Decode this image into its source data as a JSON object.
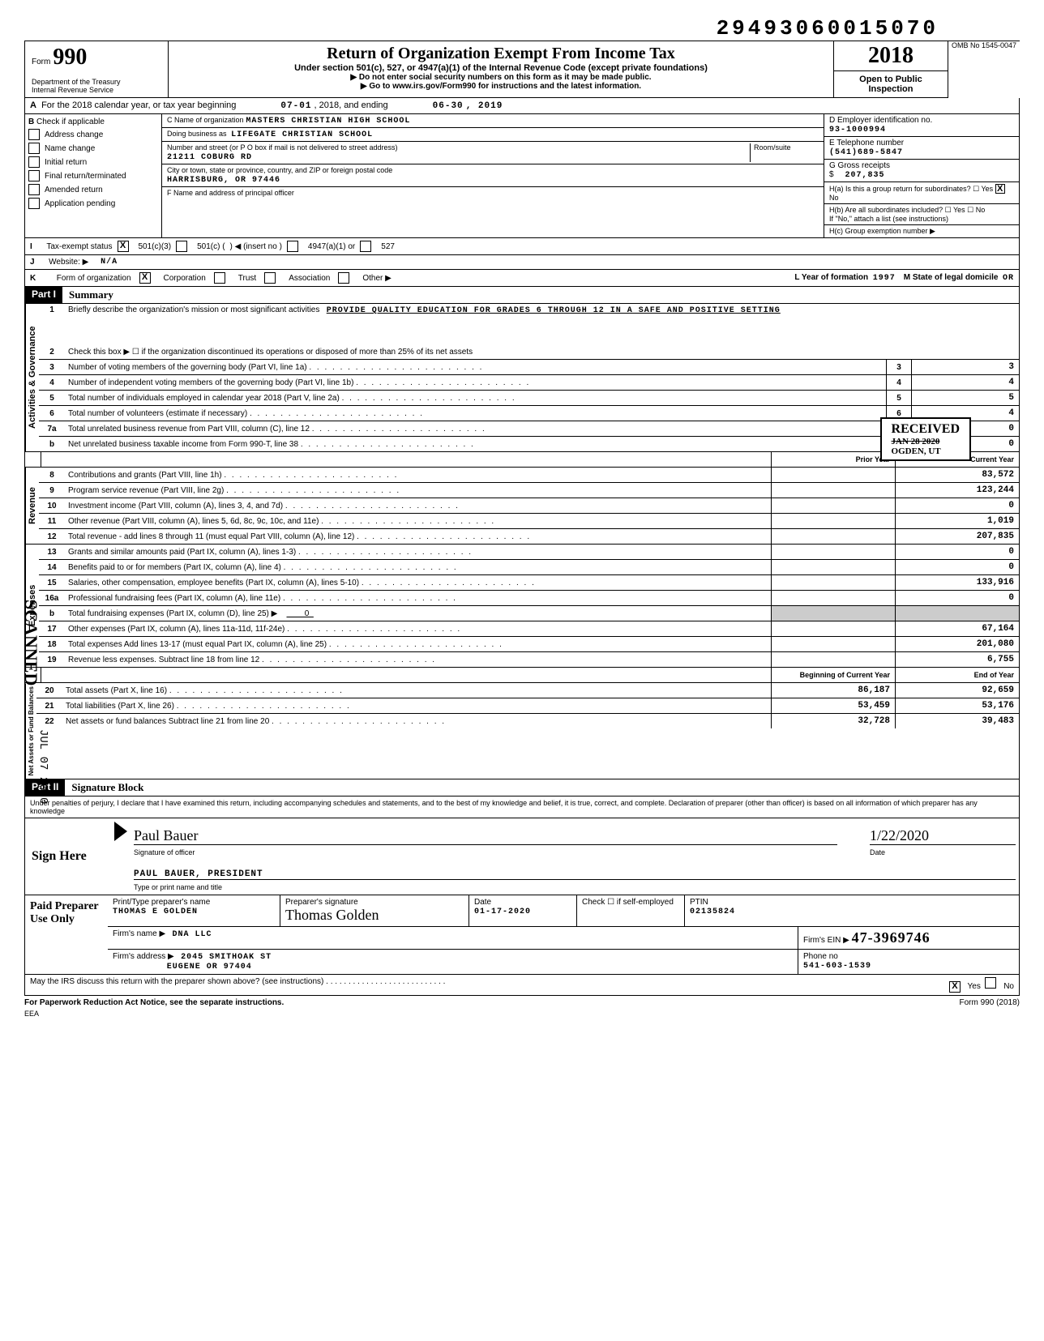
{
  "top_code": "29493060015070",
  "omb": "OMB No 1545-0047",
  "form_number": "990",
  "title": "Return of Organization Exempt From Income Tax",
  "subtitle1": "Under section 501(c), 527, or 4947(a)(1) of the Internal Revenue Code (except private foundations)",
  "subtitle2": "▶ Do not enter social security numbers on this form as it may be made public.",
  "subtitle3": "▶ Go to www.irs.gov/Form990 for instructions and the latest information.",
  "dept1": "Department of the Treasury",
  "dept2": "Internal Revenue Service",
  "year": "2018",
  "open_public": "Open to Public Inspection",
  "row_a": {
    "text": "For the 2018 calendar year, or tax year beginning",
    "begin": "07-01",
    "mid": ", 2018, and ending",
    "end_m": "06-30",
    "end_y": ", 2019"
  },
  "section_b": {
    "header": "Check if applicable",
    "items": [
      "Address change",
      "Name change",
      "Initial return",
      "Final return/terminated",
      "Amended return",
      "Application pending"
    ]
  },
  "section_c": {
    "name_label": "C Name of organization",
    "name": "MASTERS CHRISTIAN HIGH SCHOOL",
    "dba_label": "Doing business as",
    "dba": "LIFEGATE CHRISTIAN SCHOOL",
    "street_label": "Number and street (or P O box if mail is not delivered to street address)",
    "street": "21211 COBURG RD",
    "room_label": "Room/suite",
    "city_label": "City or town, state or province, country, and ZIP or foreign postal code",
    "city": "HARRISBURG, OR 97446",
    "f_label": "F Name and address of principal officer"
  },
  "section_d": {
    "ein_label": "D Employer identification no.",
    "ein": "93-1000994",
    "phone_label": "E Telephone number",
    "phone": "(541)689-5847",
    "gross_label": "G Gross receipts",
    "gross": "207,835",
    "ha_label": "H(a) Is this a group return for subordinates?",
    "hb_label": "H(b) Are all subordinates included?",
    "h_note": "If \"No,\" attach a list (see instructions)",
    "hc_label": "H(c) Group exemption number ▶"
  },
  "row_i": {
    "label": "Tax-exempt status",
    "opts": [
      "501(c)(3)",
      "501(c) (",
      "4947(a)(1) or",
      "527"
    ],
    "insert": ") ◀ (insert no )"
  },
  "row_j": {
    "label": "Website: ▶",
    "value": "N/A"
  },
  "row_k": {
    "label": "Form of organization",
    "opts": [
      "Corporation",
      "Trust",
      "Association",
      "Other ▶"
    ],
    "l_label": "L Year of formation",
    "l_val": "1997",
    "m_label": "M State of legal domicile",
    "m_val": "OR"
  },
  "part1": {
    "header": "Part I",
    "title": "Summary",
    "gov_label": "Activities & Governance",
    "rev_label": "Revenue",
    "exp_label": "Expenses",
    "net_label": "Net Assets or Fund Balances",
    "line1_label": "Briefly describe the organization's mission or most significant activities",
    "line1_val": "PROVIDE QUALITY EDUCATION FOR GRADES 6 THROUGH 12 IN A SAFE AND POSITIVE SETTING",
    "line2": "Check this box ▶ ☐ if the organization discontinued its operations or disposed of more than 25% of its net assets",
    "lines_gov": [
      {
        "n": "3",
        "t": "Number of voting members of the governing body (Part VI, line 1a)",
        "box": "3",
        "v": "3"
      },
      {
        "n": "4",
        "t": "Number of independent voting members of the governing body (Part VI, line 1b)",
        "box": "4",
        "v": "4"
      },
      {
        "n": "5",
        "t": "Total number of individuals employed in calendar year 2018 (Part V, line 2a)",
        "box": "5",
        "v": "5"
      },
      {
        "n": "6",
        "t": "Total number of volunteers (estimate if necessary)",
        "box": "6",
        "v": "4"
      },
      {
        "n": "7a",
        "t": "Total unrelated business revenue from Part VIII, column (C), line 12",
        "box": "7a",
        "v": "0"
      },
      {
        "n": "b",
        "t": "Net unrelated business taxable income from Form 990-T, line 38",
        "box": "7b",
        "v": "0"
      }
    ],
    "col_headers": {
      "prior": "Prior Year",
      "current": "Current Year",
      "begin": "Beginning of Current Year",
      "end": "End of Year"
    },
    "lines_rev": [
      {
        "n": "8",
        "t": "Contributions and grants (Part VIII, line 1h)",
        "p": "",
        "c": "83,572"
      },
      {
        "n": "9",
        "t": "Program service revenue (Part VIII, line 2g)",
        "p": "",
        "c": "123,244"
      },
      {
        "n": "10",
        "t": "Investment income (Part VIII, column (A), lines 3, 4, and 7d)",
        "p": "",
        "c": "0"
      },
      {
        "n": "11",
        "t": "Other revenue (Part VIII, column (A), lines 5, 6d, 8c, 9c, 10c, and 11e)",
        "p": "",
        "c": "1,019"
      },
      {
        "n": "12",
        "t": "Total revenue - add lines 8 through 11 (must equal Part VIII, column (A), line 12)",
        "p": "",
        "c": "207,835"
      }
    ],
    "lines_exp": [
      {
        "n": "13",
        "t": "Grants and similar amounts paid (Part IX, column (A), lines 1-3)",
        "p": "",
        "c": "0"
      },
      {
        "n": "14",
        "t": "Benefits paid to or for members (Part IX, column (A), line 4)",
        "p": "",
        "c": "0"
      },
      {
        "n": "15",
        "t": "Salaries, other compensation, employee benefits (Part IX, column (A), lines 5-10)",
        "p": "",
        "c": "133,916"
      },
      {
        "n": "16a",
        "t": "Professional fundraising fees (Part IX, column (A), line 11e)",
        "p": "",
        "c": "0"
      },
      {
        "n": "b",
        "t": "Total fundraising expenses (Part IX, column (D), line 25) ▶",
        "p": "",
        "c": "",
        "inline": "0"
      },
      {
        "n": "17",
        "t": "Other expenses (Part IX, column (A), lines 11a-11d, 11f-24e)",
        "p": "",
        "c": "67,164"
      },
      {
        "n": "18",
        "t": "Total expenses Add lines 13-17 (must equal Part IX, column (A), line 25)",
        "p": "",
        "c": "201,080"
      },
      {
        "n": "19",
        "t": "Revenue less expenses. Subtract line 18 from line 12",
        "p": "",
        "c": "6,755"
      }
    ],
    "lines_net": [
      {
        "n": "20",
        "t": "Total assets (Part X, line 16)",
        "p": "86,187",
        "c": "92,659"
      },
      {
        "n": "21",
        "t": "Total liabilities (Part X, line 26)",
        "p": "53,459",
        "c": "53,176"
      },
      {
        "n": "22",
        "t": "Net assets or fund balances Subtract line 21 from line 20",
        "p": "32,728",
        "c": "39,483"
      }
    ]
  },
  "stamps": {
    "received": "RECEIVED",
    "received_date": "JAN 28 2020",
    "received_loc": "OGDEN, UT",
    "scanned": "SCANNED",
    "scanned_date": "JUL 07 2020"
  },
  "part2": {
    "header": "Part II",
    "title": "Signature Block",
    "penalty": "Under penalties of perjury, I declare that I have examined this return, including accompanying schedules and statements, and to the best of my knowledge and belief, it is true, correct, and complete. Declaration of preparer (other than officer) is based on all information of which preparer has any knowledge",
    "sign_here": "Sign Here",
    "sig_officer_caption": "Signature of officer",
    "date_caption": "Date",
    "sig_date": "1/22/2020",
    "officer_name": "PAUL BAUER, PRESIDENT",
    "officer_caption": "Type or print name and title"
  },
  "preparer": {
    "label": "Paid Preparer Use Only",
    "name_label": "Print/Type preparer's name",
    "name": "THOMAS E GOLDEN",
    "sig_label": "Preparer's signature",
    "date_label": "Date",
    "date": "01-17-2020",
    "check_label": "Check ☐ if self-employed",
    "ptin_label": "PTIN",
    "ptin": "02135824",
    "firm_name_label": "Firm's name ▶",
    "firm_name": "DNA LLC",
    "firm_ein_label": "Firm's EIN ▶",
    "firm_ein": "47-3969746",
    "firm_addr_label": "Firm's address ▶",
    "firm_addr1": "2045 SMITHOAK ST",
    "firm_addr2": "EUGENE OR 97404",
    "phone_label": "Phone no",
    "phone": "541-603-1539"
  },
  "discuss": {
    "text": "May the IRS discuss this return with the preparer shown above? (see instructions)",
    "yes": "Yes",
    "no": "No"
  },
  "footer": {
    "left": "For Paperwork Reduction Act Notice, see the separate instructions.",
    "mid": "EEA",
    "right": "Form 990 (2018)"
  }
}
